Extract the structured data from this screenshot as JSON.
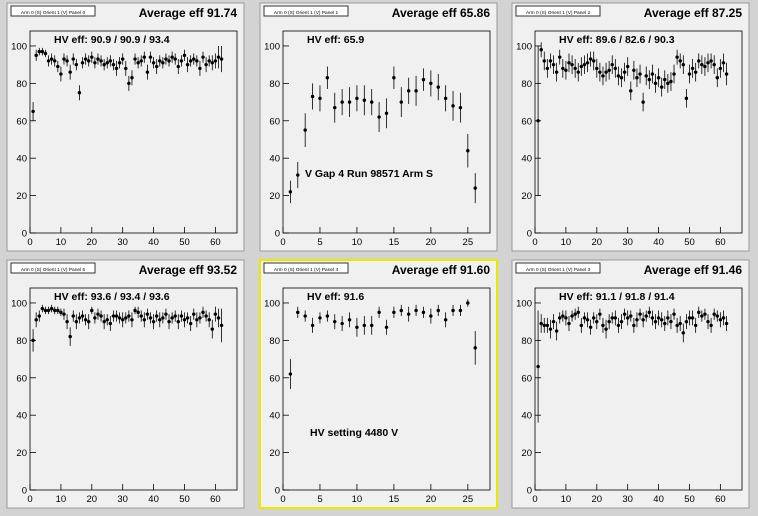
{
  "chart_data": [
    {
      "type": "scatter",
      "tag": "Arm 0 (S) Orient 1 (V) Panel 0",
      "title": "Average eff 91.74",
      "annotation": "HV eff:   90.9 / 90.9 / 93.4",
      "note": "",
      "xlim": [
        0,
        67
      ],
      "ylim": [
        0,
        108
      ],
      "xticks": [
        0,
        10,
        20,
        30,
        40,
        50,
        60
      ],
      "yticks": [
        0,
        20,
        40,
        60,
        80,
        100
      ],
      "highlight": false,
      "series": [
        {
          "x": [
            1,
            2,
            3,
            4,
            5,
            6,
            7,
            8,
            9,
            10,
            11,
            12,
            13,
            14,
            15,
            16,
            17,
            18,
            19,
            20,
            21,
            22,
            23,
            24,
            25,
            26,
            27,
            28,
            29,
            30,
            31,
            32,
            33,
            34,
            35,
            36,
            37,
            38,
            39,
            40,
            41,
            42,
            43,
            44,
            45,
            46,
            47,
            48,
            49,
            50,
            51,
            52,
            53,
            54,
            55,
            56,
            57,
            58,
            59,
            60,
            61,
            62
          ],
          "y": [
            65,
            95,
            97,
            97,
            96,
            92,
            93,
            92,
            89,
            85,
            93,
            92,
            86,
            93,
            90,
            75,
            91,
            93,
            92,
            94,
            91,
            93,
            92,
            90,
            91,
            92,
            90,
            88,
            91,
            93,
            88,
            80,
            83,
            93,
            91,
            92,
            94,
            86,
            94,
            91,
            89,
            92,
            91,
            93,
            92,
            94,
            93,
            89,
            92,
            95,
            90,
            92,
            93,
            92,
            88,
            94,
            90,
            92,
            91,
            92,
            94,
            93
          ],
          "err": [
            5,
            3,
            2,
            2,
            2,
            3,
            3,
            3,
            3,
            4,
            3,
            3,
            4,
            3,
            3,
            4,
            3,
            3,
            3,
            3,
            3,
            3,
            3,
            3,
            3,
            3,
            3,
            4,
            3,
            3,
            4,
            4,
            4,
            3,
            3,
            3,
            3,
            4,
            3,
            3,
            4,
            3,
            3,
            3,
            3,
            3,
            3,
            4,
            3,
            3,
            4,
            3,
            3,
            3,
            4,
            3,
            4,
            3,
            4,
            4,
            6,
            7
          ]
        }
      ]
    },
    {
      "type": "scatter",
      "tag": "Arm 0 (S) Orient 1 (V) Panel 1",
      "title": "Average eff 65.86",
      "annotation": "HV eff:   65.9",
      "note": "V Gap 4 Run 98571 Arm S",
      "xlim": [
        0,
        28
      ],
      "ylim": [
        0,
        108
      ],
      "xticks": [
        0,
        5,
        10,
        15,
        20,
        25
      ],
      "yticks": [
        0,
        20,
        40,
        60,
        80,
        100
      ],
      "highlight": false,
      "series": [
        {
          "x": [
            1,
            2,
            3,
            4,
            5,
            6,
            7,
            8,
            9,
            10,
            11,
            12,
            13,
            14,
            15,
            16,
            17,
            18,
            19,
            20,
            21,
            22,
            23,
            24,
            25,
            26
          ],
          "y": [
            22,
            31,
            55,
            73,
            72,
            83,
            67,
            70,
            70,
            72,
            71,
            70,
            62,
            64,
            83,
            70,
            76,
            76,
            82,
            80,
            78,
            72,
            68,
            67,
            44,
            24
          ],
          "err": [
            6,
            7,
            9,
            7,
            7,
            6,
            8,
            7,
            8,
            7,
            8,
            7,
            8,
            8,
            6,
            8,
            7,
            8,
            6,
            7,
            7,
            7,
            8,
            8,
            9,
            8
          ]
        }
      ]
    },
    {
      "type": "scatter",
      "tag": "Arm 0 (S) Orient 1 (V) Panel 2",
      "title": "Average eff 87.25",
      "annotation": "HV eff:   89.6 / 82.6 / 90.3",
      "note": "",
      "xlim": [
        0,
        67
      ],
      "ylim": [
        0,
        108
      ],
      "xticks": [
        0,
        10,
        20,
        30,
        40,
        50,
        60
      ],
      "yticks": [
        0,
        20,
        40,
        60,
        80,
        100
      ],
      "highlight": false,
      "series": [
        {
          "x": [
            1,
            2,
            3,
            4,
            5,
            6,
            7,
            8,
            9,
            10,
            11,
            12,
            13,
            14,
            15,
            16,
            17,
            18,
            19,
            20,
            21,
            22,
            23,
            24,
            25,
            26,
            27,
            28,
            29,
            30,
            31,
            32,
            33,
            34,
            35,
            36,
            37,
            38,
            39,
            40,
            41,
            42,
            43,
            44,
            45,
            46,
            47,
            48,
            49,
            50,
            51,
            52,
            53,
            54,
            55,
            56,
            57,
            58,
            59,
            60,
            61,
            62
          ],
          "y": [
            60,
            98,
            92,
            88,
            92,
            90,
            86,
            94,
            88,
            87,
            91,
            90,
            88,
            86,
            89,
            90,
            91,
            93,
            92,
            88,
            86,
            84,
            86,
            87,
            90,
            88,
            84,
            83,
            86,
            89,
            76,
            87,
            83,
            85,
            70,
            84,
            82,
            85,
            80,
            83,
            78,
            82,
            80,
            81,
            85,
            94,
            92,
            90,
            72,
            85,
            88,
            86,
            92,
            90,
            89,
            91,
            92,
            90,
            83,
            88,
            91,
            85
          ],
          "err": [
            40,
            4,
            5,
            5,
            4,
            5,
            5,
            4,
            5,
            5,
            5,
            5,
            5,
            5,
            5,
            5,
            5,
            4,
            5,
            5,
            5,
            5,
            5,
            5,
            5,
            5,
            5,
            5,
            5,
            5,
            5,
            5,
            5,
            5,
            5,
            5,
            5,
            5,
            5,
            5,
            5,
            5,
            5,
            5,
            5,
            4,
            4,
            5,
            5,
            5,
            5,
            5,
            4,
            5,
            5,
            5,
            4,
            5,
            5,
            5,
            5,
            6
          ]
        }
      ]
    },
    {
      "type": "scatter",
      "tag": "Arm 0 (S) Orient 1 (V) Panel 5",
      "title": "Average eff 93.52",
      "annotation": "HV eff:   93.6 / 93.4 / 93.6",
      "note": "",
      "xlim": [
        0,
        67
      ],
      "ylim": [
        0,
        108
      ],
      "xticks": [
        0,
        10,
        20,
        30,
        40,
        50,
        60
      ],
      "yticks": [
        0,
        20,
        40,
        60,
        80,
        100
      ],
      "highlight": false,
      "series": [
        {
          "x": [
            1,
            2,
            3,
            4,
            5,
            6,
            7,
            8,
            9,
            10,
            11,
            12,
            13,
            14,
            15,
            16,
            17,
            18,
            19,
            20,
            21,
            22,
            23,
            24,
            25,
            26,
            27,
            28,
            29,
            30,
            31,
            32,
            33,
            34,
            35,
            36,
            37,
            38,
            39,
            40,
            41,
            42,
            43,
            44,
            45,
            46,
            47,
            48,
            49,
            50,
            51,
            52,
            53,
            54,
            55,
            56,
            57,
            58,
            59,
            60,
            61,
            62
          ],
          "y": [
            80,
            91,
            93,
            97,
            96,
            96,
            97,
            96,
            96,
            95,
            94,
            90,
            82,
            93,
            90,
            92,
            93,
            91,
            90,
            96,
            92,
            94,
            93,
            90,
            91,
            89,
            93,
            93,
            92,
            91,
            92,
            93,
            91,
            96,
            95,
            93,
            91,
            94,
            92,
            90,
            93,
            91,
            92,
            94,
            90,
            92,
            93,
            90,
            93,
            91,
            92,
            89,
            94,
            91,
            92,
            95,
            93,
            91,
            86,
            94,
            92,
            88
          ],
          "err": [
            6,
            4,
            3,
            2,
            2,
            2,
            2,
            2,
            2,
            2,
            3,
            4,
            5,
            3,
            4,
            3,
            3,
            3,
            4,
            2,
            3,
            3,
            3,
            4,
            3,
            4,
            3,
            3,
            3,
            4,
            3,
            3,
            4,
            2,
            3,
            3,
            4,
            3,
            3,
            4,
            3,
            4,
            3,
            3,
            4,
            3,
            3,
            4,
            3,
            4,
            3,
            4,
            3,
            4,
            3,
            3,
            3,
            4,
            5,
            4,
            5,
            9
          ]
        }
      ]
    },
    {
      "type": "scatter",
      "tag": "Arm 0 (S) Orient 1 (V) Panel 4",
      "title": "Average eff 91.60",
      "annotation": "HV eff:   91.6",
      "note": "HV setting 4480 V",
      "xlim": [
        0,
        28
      ],
      "ylim": [
        0,
        108
      ],
      "xticks": [
        0,
        5,
        10,
        15,
        20,
        25
      ],
      "yticks": [
        0,
        20,
        40,
        60,
        80,
        100
      ],
      "highlight": true,
      "series": [
        {
          "x": [
            1,
            2,
            3,
            4,
            5,
            6,
            7,
            8,
            9,
            10,
            11,
            12,
            13,
            14,
            15,
            16,
            17,
            18,
            19,
            20,
            21,
            22,
            23,
            24,
            25,
            26
          ],
          "y": [
            62,
            95,
            93,
            88,
            92,
            93,
            90,
            89,
            91,
            87,
            88,
            88,
            95,
            87,
            95,
            96,
            94,
            96,
            95,
            93,
            96,
            91,
            96,
            96,
            100,
            76
          ],
          "err": [
            8,
            3,
            3,
            4,
            3,
            3,
            4,
            4,
            4,
            5,
            5,
            5,
            3,
            4,
            3,
            3,
            4,
            3,
            3,
            4,
            3,
            4,
            3,
            3,
            2,
            9
          ]
        }
      ]
    },
    {
      "type": "scatter",
      "tag": "Arm 0 (S) Orient 1 (V) Panel 3",
      "title": "Average eff 91.46",
      "annotation": "HV eff:   91.1 / 91.8 / 91.4",
      "note": "",
      "xlim": [
        0,
        67
      ],
      "ylim": [
        0,
        108
      ],
      "xticks": [
        0,
        10,
        20,
        30,
        40,
        50,
        60
      ],
      "yticks": [
        0,
        20,
        40,
        60,
        80,
        100
      ],
      "highlight": false,
      "series": [
        {
          "x": [
            1,
            2,
            3,
            4,
            5,
            6,
            7,
            8,
            9,
            10,
            11,
            12,
            13,
            14,
            15,
            16,
            17,
            18,
            19,
            20,
            21,
            22,
            23,
            24,
            25,
            26,
            27,
            28,
            29,
            30,
            31,
            32,
            33,
            34,
            35,
            36,
            37,
            38,
            39,
            40,
            41,
            42,
            43,
            44,
            45,
            46,
            47,
            48,
            49,
            50,
            51,
            52,
            53,
            54,
            55,
            56,
            57,
            58,
            59,
            60,
            61,
            62
          ],
          "y": [
            66,
            89,
            88,
            88,
            86,
            90,
            85,
            92,
            93,
            92,
            89,
            93,
            94,
            95,
            88,
            92,
            91,
            87,
            92,
            90,
            94,
            88,
            86,
            90,
            92,
            92,
            88,
            90,
            94,
            92,
            93,
            88,
            91,
            94,
            91,
            93,
            95,
            92,
            90,
            92,
            91,
            89,
            92,
            90,
            94,
            88,
            89,
            84,
            90,
            92,
            92,
            88,
            95,
            93,
            94,
            90,
            88,
            94,
            93,
            91,
            92,
            89
          ],
          "err": [
            30,
            5,
            4,
            4,
            5,
            4,
            5,
            3,
            3,
            4,
            4,
            3,
            3,
            3,
            4,
            3,
            4,
            4,
            3,
            4,
            3,
            4,
            5,
            4,
            3,
            4,
            4,
            4,
            3,
            4,
            3,
            4,
            4,
            3,
            4,
            3,
            3,
            4,
            4,
            4,
            4,
            4,
            4,
            4,
            3,
            4,
            4,
            5,
            4,
            4,
            4,
            4,
            3,
            3,
            3,
            4,
            4,
            3,
            3,
            4,
            4,
            4
          ]
        }
      ]
    }
  ]
}
